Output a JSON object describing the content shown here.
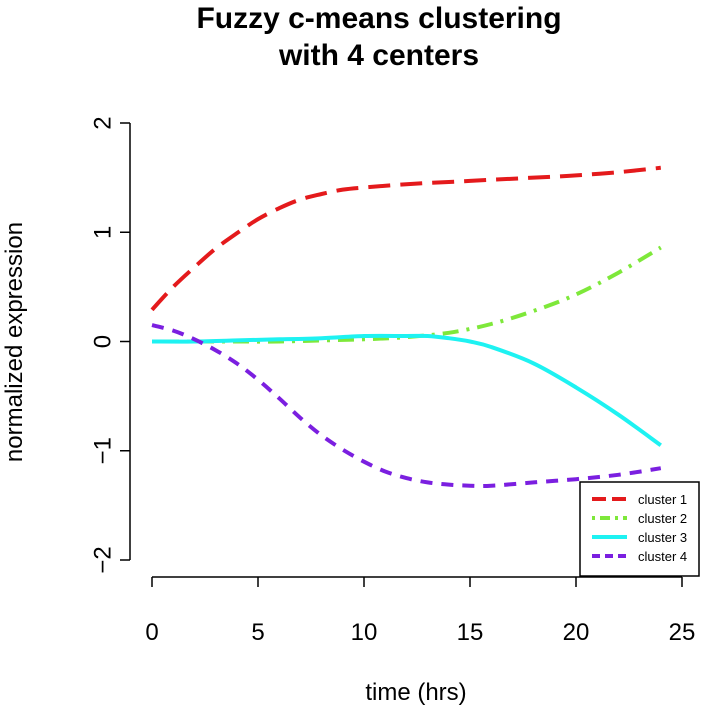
{
  "chart_data": {
    "type": "line",
    "title_line1": "Fuzzy c-means clustering",
    "title_line2": "with 4 centers",
    "xlabel": "time (hrs)",
    "ylabel": "normalized expression",
    "xlim": [
      0,
      25
    ],
    "ylim": [
      -2,
      2
    ],
    "x_ticks": [
      0,
      5,
      10,
      15,
      20,
      25
    ],
    "y_ticks": [
      -2,
      -1,
      0,
      1,
      2
    ],
    "x_tick_labels": [
      "0",
      "5",
      "10",
      "15",
      "20",
      "25"
    ],
    "y_tick_labels": [
      "−2",
      "−1",
      "0",
      "1",
      "2"
    ],
    "grid": false,
    "legend_position": "bottom-right",
    "series": [
      {
        "name": "cluster 1",
        "color": "#e41a1c",
        "dash": "long-dash",
        "x": [
          0,
          1,
          2,
          3,
          4,
          5,
          6,
          7,
          8,
          9,
          10,
          12,
          14,
          16,
          18,
          20,
          22,
          24
        ],
        "y": [
          0.29,
          0.5,
          0.68,
          0.85,
          0.99,
          1.12,
          1.22,
          1.3,
          1.35,
          1.39,
          1.41,
          1.44,
          1.46,
          1.48,
          1.5,
          1.52,
          1.55,
          1.59
        ]
      },
      {
        "name": "cluster 2",
        "color": "#7ee83a",
        "dash": "dot-dash",
        "x": [
          0,
          2,
          4,
          6,
          8,
          10,
          12,
          14,
          16,
          18,
          20,
          22,
          24
        ],
        "y": [
          0.0,
          0.0,
          0.0,
          0.0,
          0.01,
          0.02,
          0.04,
          0.08,
          0.16,
          0.28,
          0.43,
          0.63,
          0.86
        ]
      },
      {
        "name": "cluster 3",
        "color": "#1ef2f2",
        "dash": "solid",
        "x": [
          0,
          2,
          4,
          6,
          8,
          10,
          12,
          13,
          14,
          15,
          16,
          18,
          20,
          22,
          24
        ],
        "y": [
          0.0,
          0.0,
          0.01,
          0.02,
          0.03,
          0.05,
          0.05,
          0.05,
          0.03,
          0.0,
          -0.05,
          -0.2,
          -0.42,
          -0.67,
          -0.95
        ]
      },
      {
        "name": "cluster 4",
        "color": "#7b1fe0",
        "dash": "short-dash",
        "x": [
          0,
          1,
          2,
          3,
          4,
          5,
          6,
          7,
          8,
          9,
          10,
          11,
          12,
          13,
          14,
          15,
          16,
          18,
          20,
          22,
          24
        ],
        "y": [
          0.15,
          0.1,
          0.02,
          -0.08,
          -0.2,
          -0.35,
          -0.52,
          -0.7,
          -0.86,
          -0.99,
          -1.1,
          -1.19,
          -1.25,
          -1.29,
          -1.31,
          -1.32,
          -1.32,
          -1.29,
          -1.26,
          -1.22,
          -1.16
        ]
      }
    ]
  }
}
